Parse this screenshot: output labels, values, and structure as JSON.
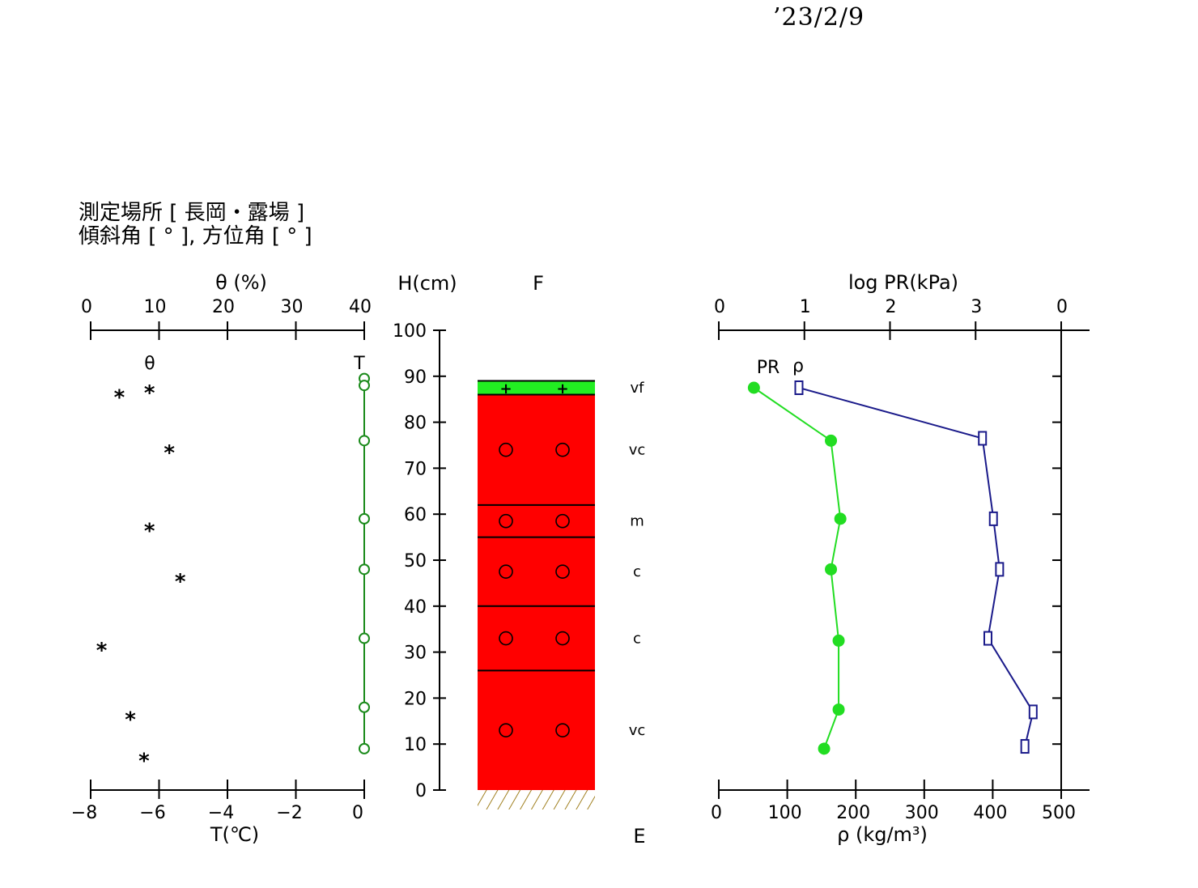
{
  "date": "’23/2/9",
  "header": {
    "location_label": "測定場所 [ 長岡・露場 ]",
    "angle_label": "傾斜角 [ ° ], 方位角 [ ° ]"
  },
  "colors": {
    "temperature": "#1a8a1a",
    "pr": "#22dd22",
    "density": "#1a1a8a",
    "layer_red": "#ff0000",
    "layer_green": "#22ee22",
    "ground": "#a08020"
  },
  "chart_data": [
    {
      "id": "theta_temperature",
      "type": "scatter",
      "top_axis": {
        "label": "θ (%)",
        "ticks": [
          "0",
          "10",
          "20",
          "30",
          "40"
        ],
        "range": [
          0,
          40
        ]
      },
      "bottom_axis": {
        "label": "T(℃)",
        "ticks": [
          "−8",
          "−6",
          "−4",
          "−2",
          "0"
        ],
        "range": [
          -8,
          0
        ]
      },
      "series": [
        {
          "name": "θ",
          "marker": "*",
          "points": [
            {
              "x": 4.2,
              "y": 86.5
            },
            {
              "x": 8.6,
              "y": 87.5
            },
            {
              "x": 11.5,
              "y": 74.5
            },
            {
              "x": 8.6,
              "y": 57.5
            },
            {
              "x": 13.1,
              "y": 46.5
            },
            {
              "x": 1.6,
              "y": 31.5
            },
            {
              "x": 5.8,
              "y": 16.5
            },
            {
              "x": 7.8,
              "y": 7.5
            }
          ]
        },
        {
          "name": "T",
          "marker": "circle-line",
          "points": [
            {
              "x": 0.0,
              "y": 89.5
            },
            {
              "x": 0.0,
              "y": 88.0
            },
            {
              "x": 0.0,
              "y": 76.0
            },
            {
              "x": 0.0,
              "y": 59.0
            },
            {
              "x": 0.0,
              "y": 48.0
            },
            {
              "x": 0.0,
              "y": 33.0
            },
            {
              "x": 0.0,
              "y": 18.0
            },
            {
              "x": 0.0,
              "y": 9.0
            }
          ]
        }
      ]
    },
    {
      "id": "stratigraphy",
      "type": "column",
      "height_axis": {
        "label": "H(cm)",
        "ticks": [
          "0",
          "10",
          "20",
          "30",
          "40",
          "50",
          "60",
          "70",
          "80",
          "90",
          "100"
        ],
        "range": [
          0,
          100
        ]
      },
      "top_label": "F",
      "bottom_label": "E",
      "layers": [
        {
          "top": 89.0,
          "bottom": 86.0,
          "color": "green",
          "symbol": "+",
          "hardness": "vf"
        },
        {
          "top": 86.0,
          "bottom": 62.0,
          "color": "red",
          "symbol": "○",
          "hardness": "vc"
        },
        {
          "top": 62.0,
          "bottom": 55.0,
          "color": "red",
          "symbol": "○",
          "hardness": "m"
        },
        {
          "top": 55.0,
          "bottom": 40.0,
          "color": "red",
          "symbol": "○",
          "hardness": "c"
        },
        {
          "top": 40.0,
          "bottom": 26.0,
          "color": "red",
          "symbol": "○",
          "hardness": "c"
        },
        {
          "top": 26.0,
          "bottom": 0.0,
          "color": "red",
          "symbol": "○",
          "hardness": "vc"
        }
      ]
    },
    {
      "id": "pr_density",
      "type": "line",
      "top_axis": {
        "label": "log PR(kPa)",
        "ticks": [
          "0",
          "1",
          "2",
          "3",
          "0"
        ],
        "range": [
          0,
          4
        ]
      },
      "bottom_axis": {
        "label": "ρ (kg/m³)",
        "ticks": [
          "0",
          "100",
          "200",
          "300",
          "400",
          "500"
        ],
        "range": [
          0,
          500
        ]
      },
      "series": [
        {
          "name": "PR",
          "marker": "filled-circle",
          "points": [
            {
              "x": 0.41,
              "y": 87.5
            },
            {
              "x": 1.31,
              "y": 76.0
            },
            {
              "x": 1.42,
              "y": 59.0
            },
            {
              "x": 1.31,
              "y": 48.0
            },
            {
              "x": 1.4,
              "y": 32.5
            },
            {
              "x": 1.4,
              "y": 17.5
            },
            {
              "x": 1.23,
              "y": 9.0
            }
          ]
        },
        {
          "name": "ρ",
          "marker": "square",
          "points": [
            {
              "x": 117,
              "y": 87.5
            },
            {
              "x": 385,
              "y": 76.5
            },
            {
              "x": 401,
              "y": 59.0
            },
            {
              "x": 410,
              "y": 48.0
            },
            {
              "x": 393,
              "y": 33.0
            },
            {
              "x": 459,
              "y": 17.0
            },
            {
              "x": 447,
              "y": 9.5
            }
          ]
        }
      ]
    }
  ]
}
